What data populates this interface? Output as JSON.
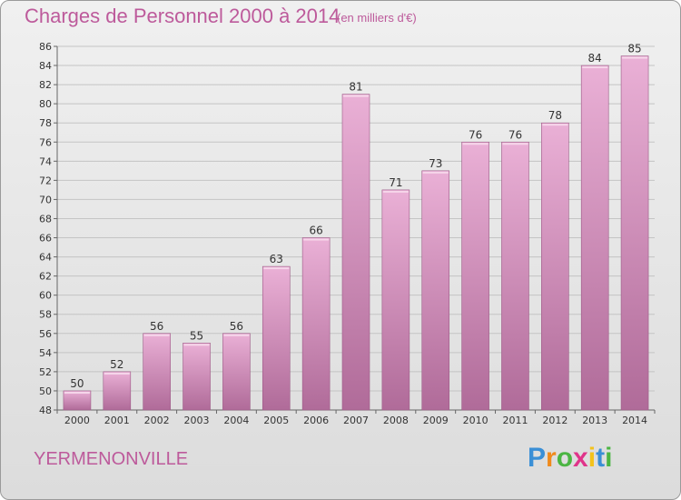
{
  "header": {
    "title": "Charges de Personnel 2000 à 2014",
    "subtitle": "(en milliers d'€)"
  },
  "footer": {
    "place": "YERMENONVILLE",
    "logo": "Proxiti"
  },
  "colors": {
    "title": "#bd5a9b",
    "bar_light": "#e9aad3",
    "bar_dark": "#b06b99"
  },
  "chart_data": {
    "type": "bar",
    "title": "Charges de Personnel 2000 à 2014",
    "subtitle": "(en milliers d'€)",
    "categories": [
      "2000",
      "2001",
      "2002",
      "2003",
      "2004",
      "2005",
      "2006",
      "2007",
      "2008",
      "2009",
      "2010",
      "2011",
      "2012",
      "2013",
      "2014"
    ],
    "values": [
      50,
      52,
      56,
      55,
      56,
      63,
      66,
      81,
      71,
      73,
      76,
      76,
      78,
      84,
      85
    ],
    "ylim": [
      48,
      86
    ],
    "yticks": [
      48,
      50,
      52,
      54,
      56,
      58,
      60,
      62,
      64,
      66,
      68,
      70,
      72,
      74,
      76,
      78,
      80,
      82,
      84,
      86
    ],
    "grid": true,
    "data_labels": true
  }
}
